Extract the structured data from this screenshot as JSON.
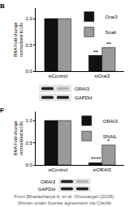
{
  "chart_data": [
    {
      "type": "bar",
      "title": "B",
      "ylabel": "RNA Fold change\nnormalized to18s",
      "categories": [
        "siControl",
        "siOrai3"
      ],
      "series": [
        {
          "name": "Orai3",
          "color": "#111111",
          "values": [
            1.0,
            0.3
          ],
          "significance": [
            null,
            "**"
          ]
        },
        {
          "name": "Snail",
          "color": "#9a9a9a",
          "values": [
            1.0,
            0.45
          ],
          "significance": [
            null,
            "**"
          ]
        }
      ],
      "ylim": [
        0,
        1.2
      ],
      "yticks": [
        {
          "value": 0,
          "label": "0.0"
        },
        {
          "value": 0.5,
          "label": "0.5"
        },
        {
          "value": 1,
          "label": "1.0"
        }
      ],
      "grid": false,
      "legend": "top-right"
    },
    {
      "type": "bar",
      "title": "F",
      "ylabel": "RNA Fold change\nnormalized to18s",
      "categories": [
        "siControl",
        "siORAI3"
      ],
      "series": [
        {
          "name": "ORAI3",
          "color": "#111111",
          "values": [
            1.0,
            0.05
          ],
          "significance": [
            null,
            "****"
          ]
        },
        {
          "name": "SNAIL",
          "color": "#9a9a9a",
          "values": [
            1.0,
            0.45
          ],
          "significance": [
            null,
            "*"
          ]
        }
      ],
      "ylim": [
        0,
        1.2
      ],
      "yticks": [
        {
          "value": 0,
          "label": "0.0"
        },
        {
          "value": 0.5,
          "label": "0.5"
        },
        {
          "value": 1,
          "label": "1.0"
        }
      ],
      "grid": false,
      "legend": "top-right"
    }
  ],
  "blots": [
    {
      "rows": [
        "ORAI3",
        "GAPDH"
      ],
      "label_side": "right"
    },
    {
      "rows": [
        "ORAI3",
        "GAPDH"
      ],
      "label_side": "left"
    }
  ],
  "caption": [
    "From Bhattacharya A, et al. Oncotarget (2018).",
    "Shown under license agreement via CiteAb"
  ]
}
